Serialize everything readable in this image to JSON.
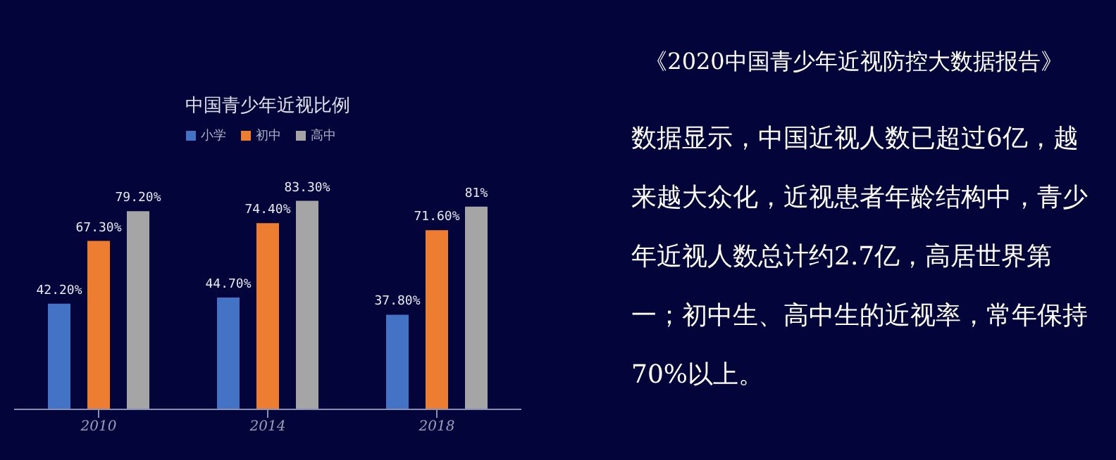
{
  "chart_data": {
    "type": "bar",
    "title": "中国青少年近视比例",
    "categories": [
      "2010",
      "2014",
      "2018"
    ],
    "series": [
      {
        "name": "小学",
        "color": "#4472c4",
        "values": [
          42.2,
          44.7,
          37.8
        ],
        "value_labels": [
          "42.20%",
          "44.70%",
          "37.80%"
        ]
      },
      {
        "name": "初中",
        "color": "#ed7d31",
        "values": [
          67.3,
          74.4,
          71.6
        ],
        "value_labels": [
          "67.30%",
          "74.40%",
          "71.60%"
        ]
      },
      {
        "name": "高中",
        "color": "#a5a5a5",
        "values": [
          79.2,
          83.3,
          81
        ],
        "value_labels": [
          "79.20%",
          "83.30%",
          "81%"
        ]
      }
    ],
    "legend": "top",
    "grid": false,
    "annotations": [
      "《2020中国青少年近视防控大数据报告》",
      "数据显示，中国近视人数已超过6亿，越来越大众化，近视患者年龄结构中，青少年近视人数总计约2.7亿，高居世界第一；初中生、高中生的近视率，常年保持70%以上。"
    ]
  }
}
